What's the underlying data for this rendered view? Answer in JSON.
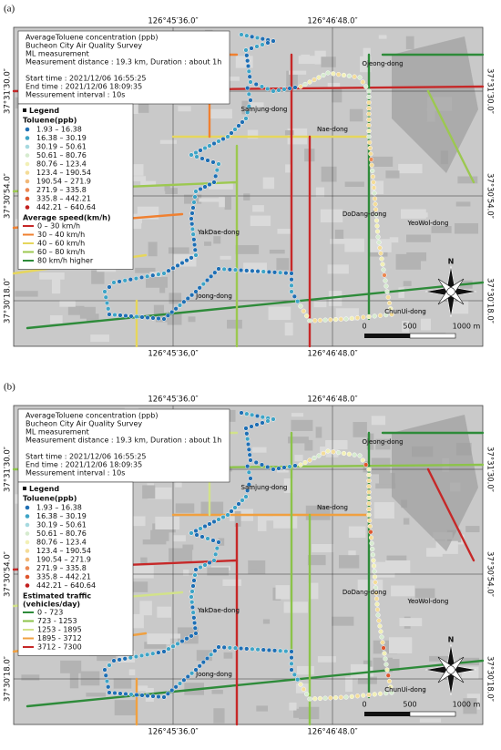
{
  "panels": [
    {
      "label": "(a)",
      "coords": {
        "top": [
          "126°45′36.0″",
          "126°46′48.0″"
        ],
        "bottom": [
          "126°45′36,0″",
          "126°46′48.0″"
        ],
        "left": [
          "37°31′30.0″",
          "37°30′54.0″",
          "37°30′18.0″"
        ],
        "right": [
          "37°31′30.0″",
          "37°30′54.0″",
          "37°30′18.0″"
        ]
      },
      "info": [
        "AverageToluene concentration (ppb)",
        "Bucheon City Air Quality Survey",
        "ML measurement",
        "Measurement distance : 19.3 km, Duration : about 1h",
        "Start time : 2021/12/06 16:55:25",
        "End time : 2021/12/06 18:09:35",
        "Messurement interval : 10s"
      ],
      "legend": {
        "title": "Legend",
        "toluene_title": "Toluene(ppb)",
        "toluene": [
          {
            "label": "1.93 – 16.38",
            "color": "#1f6fb4"
          },
          {
            "label": "16.38 – 30.19",
            "color": "#3ea4c6"
          },
          {
            "label": "30.19 – 50.61",
            "color": "#a6d9df"
          },
          {
            "label": "50.61 – 80.76",
            "color": "#d6ebcf"
          },
          {
            "label": "80.76 – 123.4",
            "color": "#f2f0b6"
          },
          {
            "label": "123.4 – 190.54",
            "color": "#f4dc98"
          },
          {
            "label": "190.54 – 271.9",
            "color": "#f1b878"
          },
          {
            "label": "271.9 – 335.8",
            "color": "#ec8852"
          },
          {
            "label": "335.8 – 442.21",
            "color": "#df562e"
          },
          {
            "label": "442.21 – 640.64",
            "color": "#c21f1f"
          }
        ],
        "roads_title": [
          "Average speed(km/h)"
        ],
        "roads": [
          {
            "label": "0 – 30 km/h",
            "color": "#c62828"
          },
          {
            "label": "30 – 40 km/h",
            "color": "#f08030"
          },
          {
            "label": "40 – 60 km/h",
            "color": "#e6d65c"
          },
          {
            "label": "60 – 80 km/h",
            "color": "#9cc850"
          },
          {
            "label": "80 km/h higher",
            "color": "#2e8b3a"
          }
        ]
      },
      "places": [
        "Ojeong-dong",
        "Samjung-dong",
        "Nae-dong",
        "YakDae-dong",
        "DoDang-dong",
        "YeoWol-dong",
        "Joong-dong",
        "ChunUi-dong"
      ],
      "scale": [
        "0",
        "500",
        "1000 m"
      ],
      "north": "N"
    },
    {
      "label": "(b)",
      "coords": {
        "top": [
          "126°45′36.0″",
          "126°46′48.0″"
        ],
        "bottom": [
          "126°45′36.0″",
          "126°46′48.0″"
        ],
        "left": [
          "37°31′30.0″",
          "37°30′54.0″",
          "37°30′18.0″"
        ],
        "right": [
          "37°31′30.0″",
          "37°30′54.0″",
          "37°30′18.0″"
        ]
      },
      "info": [
        "AverageToluene concentration (ppb)",
        "Bucheon City Air Quality Survey",
        "ML measurement",
        "Measurement distance : 19.3 km, Duration : about 1h",
        "Start time : 2021/12/06 16:55:25",
        "End time : 2021/12/06 18:09:35",
        "Messurement interval : 10s"
      ],
      "legend": {
        "title": "Legend",
        "toluene_title": "Toluene(ppb)",
        "toluene": [
          {
            "label": "1.93 – 16.38",
            "color": "#1f6fb4"
          },
          {
            "label": "16.38 – 30.19",
            "color": "#3ea4c6"
          },
          {
            "label": "30.19 – 50.61",
            "color": "#a6d9df"
          },
          {
            "label": "50.61 – 80.76",
            "color": "#d6ebcf"
          },
          {
            "label": "80.76 – 123.4",
            "color": "#f2f0b6"
          },
          {
            "label": "123.4 – 190.54",
            "color": "#f4dc98"
          },
          {
            "label": "190.54 – 271.9",
            "color": "#f1b878"
          },
          {
            "label": "271.9 – 335.8",
            "color": "#ec8852"
          },
          {
            "label": "335.8 – 442.21",
            "color": "#df562e"
          },
          {
            "label": "442.21 – 640.64",
            "color": "#c21f1f"
          }
        ],
        "roads_title": [
          "Estimated traffic",
          "(vehicles/day)"
        ],
        "roads": [
          {
            "label": "0 - 723",
            "color": "#2e8b3a"
          },
          {
            "label": "723 - 1253",
            "color": "#8cc34a"
          },
          {
            "label": "1253 - 1895",
            "color": "#d2e28a"
          },
          {
            "label": "1895 - 3712",
            "color": "#f0a040"
          },
          {
            "label": "3712 - 7300",
            "color": "#c62828"
          }
        ]
      },
      "places": [
        "Ojeong-dong",
        "Samjung-dong",
        "Nae-dong",
        "YakDae-dong",
        "DoDang-dong",
        "YeoWol-dong",
        "Joong-dong",
        "ChunUi-dong"
      ],
      "scale": [
        "0",
        "500",
        "1000 m"
      ],
      "north": "N"
    }
  ]
}
